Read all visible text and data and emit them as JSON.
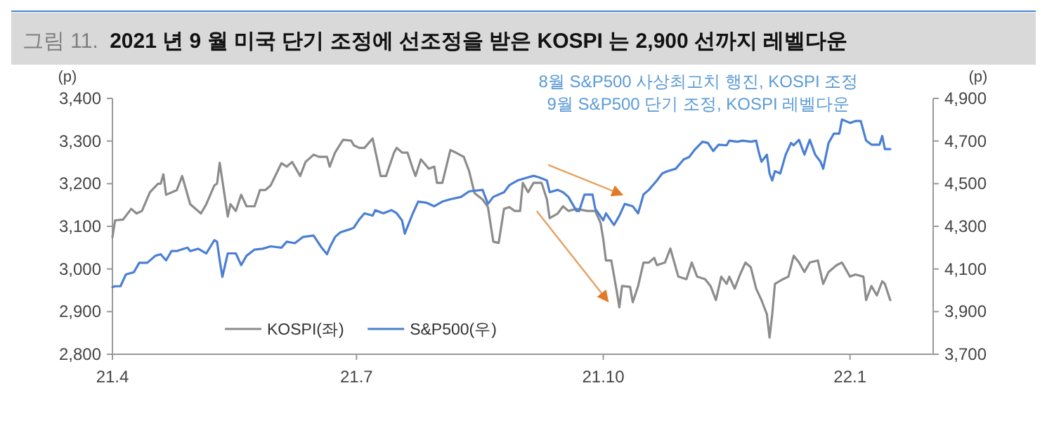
{
  "chart_data": {
    "type": "line",
    "title": "2021 년 9 월 미국 단기 조정에 선조정을 받은 KOSPI 는 2,900 선까지 레벨다운",
    "subtitle": "그림 11.",
    "ylabel": "(p)",
    "y2label": "(p)",
    "annotations": [
      "8월 S&P500 사상최고치 행진, KOSPI 조정",
      "9월 S&P500 단기 조정, KOSPI 레벨다운"
    ],
    "xlim": [
      "2021-04-01",
      "2022-02-01"
    ],
    "xticks": [
      {
        "value": "2021-04-01",
        "label": "21.4"
      },
      {
        "value": "2021-07-01",
        "label": "21.7"
      },
      {
        "value": "2021-10-01",
        "label": "21.10"
      },
      {
        "value": "2022-01-01",
        "label": "22.1"
      }
    ],
    "ylim": [
      2800,
      3400
    ],
    "yticks": [
      {
        "value": 2800,
        "label": "2,800"
      },
      {
        "value": 2900,
        "label": "2,900"
      },
      {
        "value": 3000,
        "label": "3,000"
      },
      {
        "value": 3100,
        "label": "3,100"
      },
      {
        "value": 3200,
        "label": "3,200"
      },
      {
        "value": 3300,
        "label": "3,300"
      },
      {
        "value": 3400,
        "label": "3,400"
      }
    ],
    "y2lim": [
      3700,
      4900
    ],
    "y2ticks": [
      {
        "value": 3700,
        "label": "3,700"
      },
      {
        "value": 3900,
        "label": "3,900"
      },
      {
        "value": 4100,
        "label": "4,100"
      },
      {
        "value": 4300,
        "label": "4,300"
      },
      {
        "value": 4500,
        "label": "4,500"
      },
      {
        "value": 4700,
        "label": "4,700"
      },
      {
        "value": 4900,
        "label": "4,900"
      }
    ],
    "grid": false,
    "legend": "bottom left",
    "marker": "none",
    "line_style": "solid",
    "series": [
      {
        "name": "KOSPI(좌)",
        "color": "#8c8c8c",
        "x": [
          "2021-04-01",
          "2021-04-02",
          "2021-04-05",
          "2021-04-08",
          "2021-04-10",
          "2021-04-12",
          "2021-04-15",
          "2021-04-18",
          "2021-04-19",
          "2021-04-20",
          "2021-04-21",
          "2021-04-25",
          "2021-04-27",
          "2021-04-30",
          "2021-05-04",
          "2021-05-06",
          "2021-05-09",
          "2021-05-10",
          "2021-05-11",
          "2021-05-14",
          "2021-05-15",
          "2021-05-17",
          "2021-05-19",
          "2021-05-21",
          "2021-05-24",
          "2021-05-26",
          "2021-05-28",
          "2021-05-30",
          "2021-06-03",
          "2021-06-05",
          "2021-06-07",
          "2021-06-10",
          "2021-06-12",
          "2021-06-15",
          "2021-06-17",
          "2021-06-20",
          "2021-06-21",
          "2021-06-23",
          "2021-06-26",
          "2021-06-29",
          "2021-06-30",
          "2021-07-02",
          "2021-07-04",
          "2021-07-07",
          "2021-07-09",
          "2021-07-10",
          "2021-07-12",
          "2021-07-15",
          "2021-07-16",
          "2021-07-18",
          "2021-07-20",
          "2021-07-22",
          "2021-07-23",
          "2021-07-25",
          "2021-07-28",
          "2021-07-30",
          "2021-07-31",
          "2021-08-02",
          "2021-08-05",
          "2021-08-07",
          "2021-08-10",
          "2021-08-12",
          "2021-08-14",
          "2021-08-17",
          "2021-08-19",
          "2021-08-21",
          "2021-08-23",
          "2021-08-25",
          "2021-08-27",
          "2021-08-29",
          "2021-08-31",
          "2021-09-01",
          "2021-09-03",
          "2021-09-05",
          "2021-09-08",
          "2021-09-10",
          "2021-09-11",
          "2021-09-14",
          "2021-09-16",
          "2021-09-18",
          "2021-09-21",
          "2021-09-25",
          "2021-09-28",
          "2021-09-30",
          "2021-10-01",
          "2021-10-02",
          "2021-10-04",
          "2021-10-06",
          "2021-10-07",
          "2021-10-08",
          "2021-10-11",
          "2021-10-12",
          "2021-10-14",
          "2021-10-16",
          "2021-10-18",
          "2021-10-20",
          "2021-10-21",
          "2021-10-24",
          "2021-10-26",
          "2021-10-29",
          "2021-11-01",
          "2021-11-03",
          "2021-11-05",
          "2021-11-08",
          "2021-11-10",
          "2021-11-12",
          "2021-11-14",
          "2021-11-16",
          "2021-11-17",
          "2021-11-19",
          "2021-11-21",
          "2021-11-23",
          "2021-11-25",
          "2021-11-27",
          "2021-11-29",
          "2021-12-01",
          "2021-12-02",
          "2021-12-03",
          "2021-12-04",
          "2021-12-07",
          "2021-12-09",
          "2021-12-11",
          "2021-12-13",
          "2021-12-15",
          "2021-12-17",
          "2021-12-20",
          "2021-12-22",
          "2021-12-24",
          "2021-12-27",
          "2021-12-29",
          "2022-01-01",
          "2022-01-03",
          "2022-01-06",
          "2022-01-07",
          "2022-01-09",
          "2022-01-11",
          "2022-01-13",
          "2022-01-14",
          "2022-01-16"
        ],
        "values": [
          3075,
          3114,
          3116,
          3141,
          3130,
          3136,
          3180,
          3200,
          3200,
          3222,
          3174,
          3185,
          3218,
          3152,
          3130,
          3152,
          3196,
          3200,
          3249,
          3123,
          3152,
          3136,
          3174,
          3147,
          3147,
          3185,
          3185,
          3196,
          3248,
          3240,
          3251,
          3218,
          3251,
          3268,
          3263,
          3263,
          3240,
          3273,
          3303,
          3301,
          3290,
          3284,
          3284,
          3306,
          3248,
          3218,
          3218,
          3273,
          3284,
          3273,
          3273,
          3235,
          3218,
          3257,
          3235,
          3240,
          3202,
          3202,
          3279,
          3273,
          3263,
          3229,
          3178,
          3163,
          3145,
          3064,
          3061,
          3141,
          3145,
          3136,
          3136,
          3202,
          3180,
          3202,
          3202,
          3163,
          3119,
          3130,
          3147,
          3136,
          3141,
          3136,
          3136,
          3108,
          3070,
          3020,
          3020,
          2949,
          2910,
          2960,
          2958,
          2922,
          2960,
          3015,
          3015,
          3026,
          3009,
          3015,
          3048,
          2982,
          2976,
          3015,
          2982,
          2976,
          2960,
          2927,
          2982,
          2965,
          2982,
          2954,
          2987,
          3015,
          3004,
          2954,
          2927,
          2894,
          2839,
          2894,
          2965,
          2976,
          2982,
          3031,
          3015,
          2993,
          3015,
          3020,
          2965,
          2993,
          3009,
          3015,
          2982,
          2987,
          2982,
          2927,
          2960,
          2938,
          2971,
          2965,
          2927
        ]
      },
      {
        "name": "S&P500(우)",
        "color": "#4a7fd4",
        "axis": "y2",
        "x": [
          "2021-04-01",
          "2021-04-02",
          "2021-04-04",
          "2021-04-06",
          "2021-04-09",
          "2021-04-11",
          "2021-04-14",
          "2021-04-17",
          "2021-04-19",
          "2021-04-21",
          "2021-04-23",
          "2021-04-25",
          "2021-04-29",
          "2021-04-30",
          "2021-05-03",
          "2021-05-06",
          "2021-05-09",
          "2021-05-10",
          "2021-05-11",
          "2021-05-12",
          "2021-05-14",
          "2021-05-17",
          "2021-05-19",
          "2021-05-21",
          "2021-05-24",
          "2021-05-27",
          "2021-05-30",
          "2021-06-03",
          "2021-06-05",
          "2021-06-08",
          "2021-06-11",
          "2021-06-15",
          "2021-06-18",
          "2021-06-20",
          "2021-06-21",
          "2021-06-23",
          "2021-06-25",
          "2021-06-29",
          "2021-06-30",
          "2021-07-02",
          "2021-07-04",
          "2021-07-07",
          "2021-07-08",
          "2021-07-11",
          "2021-07-14",
          "2021-07-16",
          "2021-07-18",
          "2021-07-19",
          "2021-07-22",
          "2021-07-24",
          "2021-07-27",
          "2021-07-30",
          "2021-08-02",
          "2021-08-05",
          "2021-08-09",
          "2021-08-12",
          "2021-08-17",
          "2021-08-19",
          "2021-08-21",
          "2021-08-25",
          "2021-08-27",
          "2021-08-30",
          "2021-09-03",
          "2021-09-05",
          "2021-09-07",
          "2021-09-10",
          "2021-09-11",
          "2021-09-14",
          "2021-09-16",
          "2021-09-18",
          "2021-09-21",
          "2021-09-22",
          "2021-09-24",
          "2021-09-27",
          "2021-09-28",
          "2021-10-01",
          "2021-10-02",
          "2021-10-05",
          "2021-10-07",
          "2021-10-09",
          "2021-10-12",
          "2021-10-14",
          "2021-10-16",
          "2021-10-18",
          "2021-10-21",
          "2021-10-23",
          "2021-10-25",
          "2021-10-28",
          "2021-10-31",
          "2021-11-02",
          "2021-11-04",
          "2021-11-07",
          "2021-11-09",
          "2021-11-11",
          "2021-11-13",
          "2021-11-16",
          "2021-11-17",
          "2021-11-20",
          "2021-11-22",
          "2021-11-25",
          "2021-11-27",
          "2021-11-28",
          "2021-11-29",
          "2021-12-01",
          "2021-12-02",
          "2021-12-03",
          "2021-12-04",
          "2021-12-06",
          "2021-12-08",
          "2021-12-10",
          "2021-12-11",
          "2021-12-13",
          "2021-12-15",
          "2021-12-17",
          "2021-12-19",
          "2021-12-21",
          "2021-12-22",
          "2021-12-24",
          "2021-12-26",
          "2021-12-28",
          "2021-12-29",
          "2022-01-01",
          "2022-01-03",
          "2022-01-05",
          "2022-01-07",
          "2022-01-09",
          "2022-01-12",
          "2022-01-13",
          "2022-01-14",
          "2022-01-16"
        ],
        "values": [
          4015,
          4019,
          4019,
          4074,
          4085,
          4129,
          4129,
          4162,
          4169,
          4140,
          4184,
          4184,
          4200,
          4184,
          4195,
          4173,
          4235,
          4228,
          4140,
          4063,
          4173,
          4173,
          4118,
          4162,
          4191,
          4195,
          4206,
          4200,
          4228,
          4221,
          4250,
          4257,
          4200,
          4169,
          4200,
          4250,
          4272,
          4288,
          4294,
          4332,
          4361,
          4350,
          4376,
          4361,
          4376,
          4361,
          4327,
          4266,
          4361,
          4416,
          4411,
          4394,
          4416,
          4427,
          4438,
          4464,
          4471,
          4405,
          4438,
          4460,
          4493,
          4515,
          4530,
          4537,
          4530,
          4515,
          4460,
          4471,
          4460,
          4438,
          4372,
          4372,
          4449,
          4449,
          4383,
          4328,
          4361,
          4306,
          4350,
          4405,
          4394,
          4361,
          4449,
          4471,
          4515,
          4548,
          4559,
          4570,
          4614,
          4625,
          4658,
          4697,
          4691,
          4653,
          4683,
          4680,
          4702,
          4697,
          4702,
          4697,
          4702,
          4647,
          4603,
          4636,
          4548,
          4515,
          4559,
          4548,
          4636,
          4691,
          4680,
          4706,
          4636,
          4706,
          4636,
          4603,
          4570,
          4691,
          4735,
          4735,
          4801,
          4785,
          4794,
          4794,
          4702,
          4683,
          4683,
          4724,
          4662,
          4662
        ]
      }
    ]
  }
}
